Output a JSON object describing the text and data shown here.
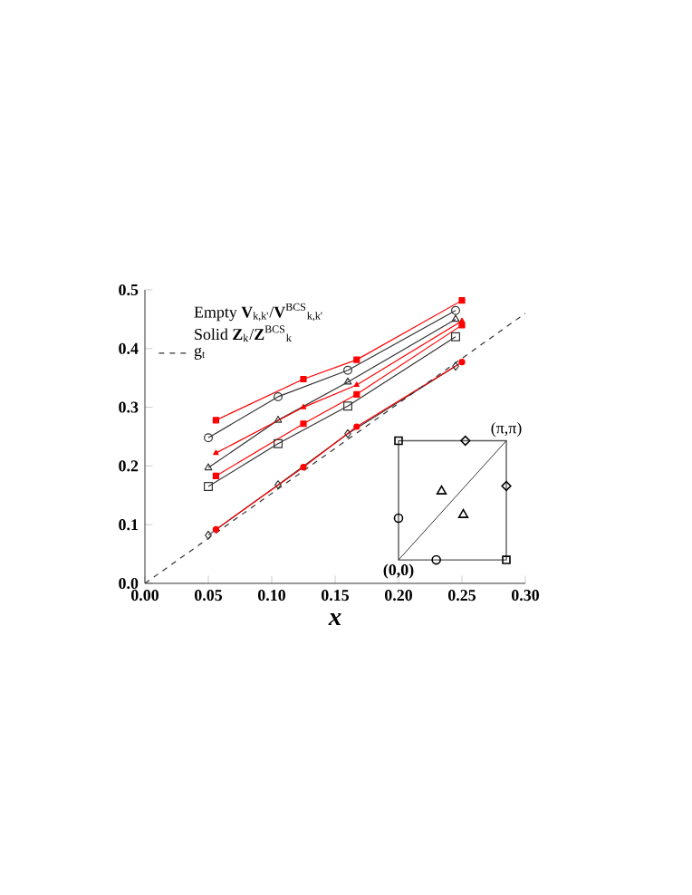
{
  "chart_data": {
    "type": "line",
    "xlabel": "x",
    "xlim": [
      0,
      0.3
    ],
    "ylim": [
      0,
      0.5
    ],
    "xticks": [
      {
        "value": 0,
        "label": "0.00"
      },
      {
        "value": 0.05,
        "label": "0.05"
      },
      {
        "value": 0.1,
        "label": "0.10"
      },
      {
        "value": 0.15,
        "label": "0.15"
      },
      {
        "value": 0.2,
        "label": "0.20"
      },
      {
        "value": 0.25,
        "label": "0.25"
      },
      {
        "value": 0.3,
        "label": "0.30"
      }
    ],
    "yticks": [
      {
        "value": 0,
        "label": "0.0"
      },
      {
        "value": 0.1,
        "label": "0.1"
      },
      {
        "value": 0.2,
        "label": "0.2"
      },
      {
        "value": 0.3,
        "label": "0.3"
      },
      {
        "value": 0.4,
        "label": "0.4"
      },
      {
        "value": 0.5,
        "label": "0.5"
      }
    ],
    "legend": "top left",
    "annotations": [
      "Empty  **V**$_{k,k'}$/**V**$^{BCS}$$_{k,k'}$",
      "Solid  **Z**$_{k}$/**Z**$^{BCS}$$_{k}$",
      "(0,0)",
      "(π,π)"
    ],
    "series": [
      {
        "color": "#333333",
        "marker": "circle",
        "x": [
          0.05,
          0.105,
          0.16,
          0.245
        ],
        "values": [
          0.248,
          0.318,
          0.363,
          0.465
        ]
      },
      {
        "color": "#333333",
        "marker": "triangle",
        "x": [
          0.05,
          0.105,
          0.16,
          0.245
        ],
        "values": [
          0.197,
          0.278,
          0.343,
          0.45
        ]
      },
      {
        "color": "#333333",
        "marker": "square",
        "x": [
          0.05,
          0.105,
          0.16,
          0.245
        ],
        "values": [
          0.165,
          0.238,
          0.302,
          0.42
        ]
      },
      {
        "color": "#333333",
        "marker": "diamond",
        "x": [
          0.05,
          0.105,
          0.16,
          0.245
        ],
        "values": [
          0.082,
          0.168,
          0.255,
          0.37
        ]
      },
      {
        "color": "#ff0000",
        "marker": "square",
        "x": [
          0.056,
          0.125,
          0.167,
          0.25
        ],
        "values": [
          0.278,
          0.348,
          0.381,
          0.482
        ]
      },
      {
        "color": "#ff0000",
        "marker": "triangle",
        "x": [
          0.056,
          0.125,
          0.167,
          0.25
        ],
        "values": [
          0.222,
          0.3,
          0.338,
          0.447
        ]
      },
      {
        "color": "#ff0000",
        "marker": "square",
        "x": [
          0.056,
          0.125,
          0.167,
          0.25
        ],
        "values": [
          0.183,
          0.272,
          0.322,
          0.44
        ]
      },
      {
        "color": "#ff0000",
        "marker": "circle",
        "x": [
          0.056,
          0.125,
          0.167,
          0.25
        ],
        "values": [
          0.092,
          0.198,
          0.267,
          0.377
        ]
      },
      {
        "name": "g$_{t}$",
        "color": "#333333",
        "marker": "none",
        "line_style": "dashed",
        "x": [
          0,
          0.3
        ],
        "values": [
          0,
          0.46
        ]
      }
    ]
  }
}
